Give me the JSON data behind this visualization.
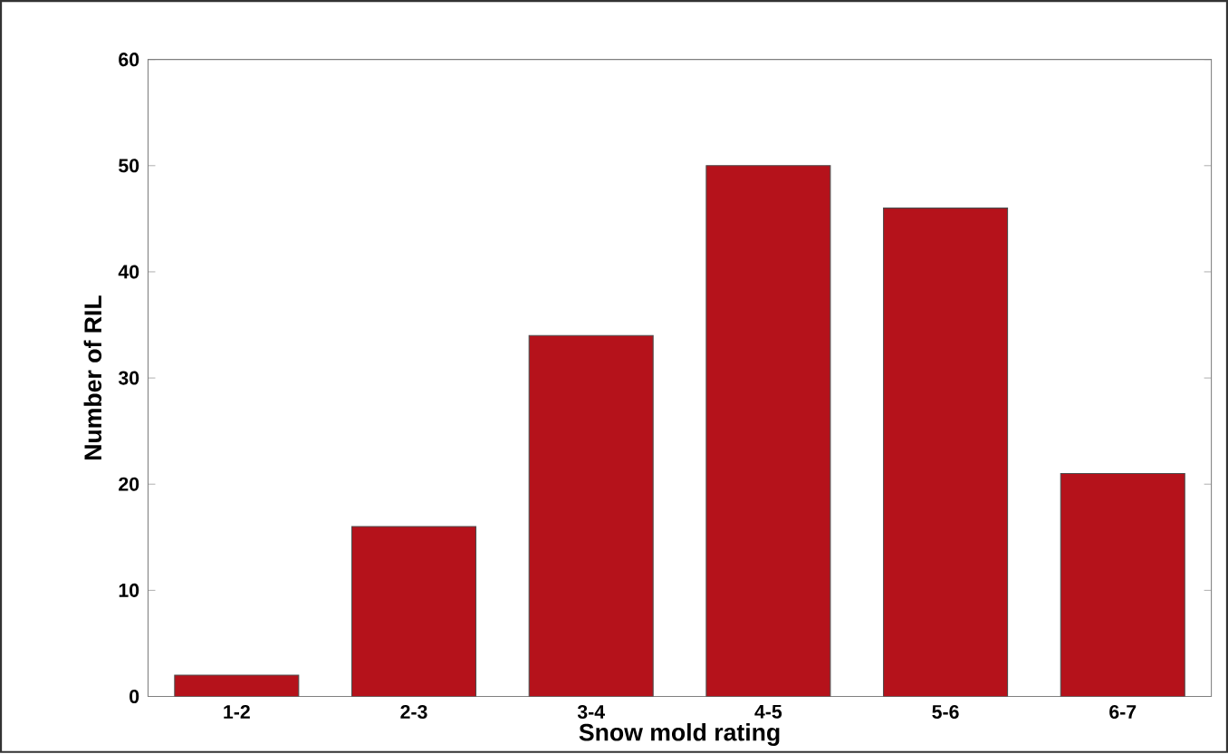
{
  "chart_data": {
    "type": "bar",
    "xlabel": "Snow mold rating",
    "ylabel": "Number of RIL",
    "categories": [
      "1-2",
      "2-3",
      "3-4",
      "4-5",
      "5-6",
      "6-7"
    ],
    "values": [
      2,
      16,
      34,
      50,
      46,
      21
    ],
    "color": "#b5121b",
    "ylim": [
      0,
      60
    ],
    "yticks": [
      0,
      10,
      20,
      30,
      40,
      50,
      60
    ],
    "grid": false
  }
}
